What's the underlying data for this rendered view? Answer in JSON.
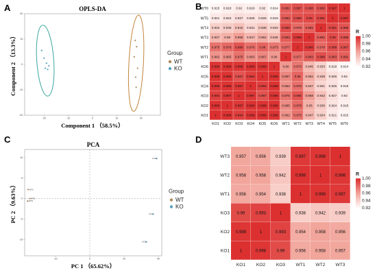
{
  "chart_data": [
    {
      "panel": "A",
      "type": "scatter",
      "title": "OPLS-DA",
      "xlabel": "Component 1 （58.5%）",
      "ylabel": "Component 2 （13.3%）",
      "legend_title": "Group",
      "legend_placement": "right",
      "xlim": [
        -28,
        28
      ],
      "ylim": [
        -20,
        20
      ],
      "x_ticks": [
        "-20",
        "-10",
        "0",
        "10",
        "20"
      ],
      "y_ticks": [
        "-20",
        "-10",
        "0",
        "10",
        "20"
      ],
      "series": [
        {
          "name": "WT",
          "color": "#a9885a",
          "x": [
            17.6,
            18.2,
            17.2,
            18.6,
            17.8,
            18.0
          ],
          "y": [
            9.5,
            7.0,
            3.0,
            -1.5,
            -5.0,
            -9.0
          ]
        },
        {
          "name": "KO",
          "color": "#56a0c0",
          "x": [
            -21.0,
            -20.0,
            -19.0,
            -18.0,
            -19.5,
            -18.5
          ],
          "y": [
            5.5,
            2.5,
            0.5,
            -0.5,
            -1.5,
            -2.0
          ]
        }
      ]
    },
    {
      "panel": "B",
      "type": "heatmap",
      "row_labels": [
        "WT6",
        "WT5",
        "WT4",
        "WT3",
        "WT2",
        "WT1",
        "KO6",
        "KO5",
        "KO4",
        "KO3",
        "KO2",
        "KO1"
      ],
      "col_labels": [
        "KO1",
        "KO2",
        "KO3",
        "KO4",
        "KO5",
        "KO6",
        "WT1",
        "WT2",
        "WT3",
        "WT4",
        "WT5",
        "WT6"
      ],
      "values": [
        [
          0.915,
          0.918,
          0.92,
          0.918,
          0.92,
          0.914,
          0.982,
          0.987,
          0.986,
          0.986,
          0.997,
          1
        ],
        [
          0.921,
          0.924,
          0.927,
          0.925,
          0.926,
          0.919,
          0.983,
          0.988,
          0.99,
          0.991,
          1,
          0.997
        ],
        [
          0.934,
          0.936,
          0.942,
          0.931,
          0.938,
          0.933,
          0.988,
          0.978,
          0.982,
          1,
          0.991,
          0.986
        ],
        [
          0.947,
          0.95,
          0.958,
          0.947,
          0.952,
          0.945,
          0.983,
          0.996,
          1,
          0.982,
          0.99,
          0.986
        ],
        [
          0.975,
          0.978,
          0.986,
          0.976,
          0.98,
          0.973,
          0.977,
          1,
          0.996,
          0.978,
          0.988,
          0.987
        ],
        [
          0.962,
          0.965,
          0.975,
          0.963,
          0.967,
          0.96,
          1,
          0.977,
          0.983,
          0.988,
          0.983,
          0.982
        ],
        [
          0.998,
          0.999,
          0.998,
          0.999,
          0.999,
          1,
          0.96,
          0.973,
          0.945,
          0.933,
          0.919,
          0.914
        ],
        [
          0.999,
          0.999,
          0.987,
          0.994,
          1,
          0.999,
          0.967,
          0.98,
          0.952,
          0.938,
          0.926,
          0.92
        ],
        [
          0.998,
          0.999,
          0.997,
          1,
          0.994,
          0.999,
          0.963,
          0.976,
          0.947,
          0.931,
          0.925,
          0.918
        ],
        [
          0.994,
          0.997,
          1,
          0.997,
          0.987,
          0.998,
          0.975,
          0.986,
          0.958,
          0.942,
          0.927,
          0.92
        ],
        [
          0.999,
          1,
          0.997,
          0.999,
          0.999,
          0.999,
          0.965,
          0.978,
          0.95,
          0.936,
          0.924,
          0.918
        ],
        [
          1,
          0.999,
          0.994,
          0.998,
          0.999,
          0.998,
          0.962,
          0.975,
          0.947,
          0.934,
          0.921,
          0.915
        ]
      ],
      "colorbar_title": "R",
      "colorbar_ticks": [
        "1.00",
        "0.98",
        "0.96",
        "0.94",
        "0.92"
      ],
      "value_range": [
        0.91,
        1.0
      ]
    },
    {
      "panel": "C",
      "type": "scatter",
      "title": "PCA",
      "xlabel": "PC 1 （65.62%）",
      "ylabel": "PC 2 （9.63%）",
      "legend_title": "Group",
      "legend_placement": "right",
      "xlim": [
        -38,
        42
      ],
      "ylim": [
        -14,
        12
      ],
      "x_ticks": [
        "-20",
        "0",
        "20",
        "40"
      ],
      "y_ticks": [
        "10",
        "5",
        "0",
        "-5",
        "-10"
      ],
      "series": [
        {
          "name": "WT",
          "color": "#a9885a",
          "points": [
            {
              "x": -36.0,
              "y": 2.2,
              "label": "WT1"
            },
            {
              "x": -35.0,
              "y": 0.0,
              "label": "WT2"
            },
            {
              "x": -36.3,
              "y": -0.6,
              "label": "WT3"
            }
          ]
        },
        {
          "name": "KO",
          "color": "#56a0c0",
          "points": [
            {
              "x": 39.0,
              "y": 9.8,
              "label": "KO3"
            },
            {
              "x": 37.0,
              "y": -3.8,
              "label": "KO1"
            },
            {
              "x": 33.0,
              "y": -10.6,
              "label": "KO2"
            }
          ]
        }
      ]
    },
    {
      "panel": "D",
      "type": "heatmap",
      "row_labels": [
        "WT3",
        "WT2",
        "WT1",
        "KO3",
        "KO2",
        "KO1"
      ],
      "col_labels": [
        "KO1",
        "KO2",
        "KO3",
        "WT1",
        "WT2",
        "WT3"
      ],
      "values": [
        [
          0.957,
          0.956,
          0.939,
          0.997,
          0.998,
          1
        ],
        [
          0.958,
          0.958,
          0.942,
          0.999,
          1,
          0.998
        ],
        [
          0.956,
          0.954,
          0.938,
          1,
          0.999,
          0.997
        ],
        [
          0.99,
          0.993,
          1,
          0.938,
          0.942,
          0.939
        ],
        [
          0.998,
          1,
          0.993,
          0.954,
          0.958,
          0.956
        ],
        [
          1,
          0.998,
          0.99,
          0.956,
          0.958,
          0.957
        ]
      ],
      "colorbar_title": "R",
      "colorbar_ticks": [
        "1.00",
        "0.98",
        "0.96",
        "0.94",
        "0.92"
      ],
      "value_range": [
        0.915,
        1.0
      ]
    }
  ],
  "panel_labels": [
    "A",
    "B",
    "C",
    "D"
  ],
  "colors": {
    "high": "#dc3030",
    "mid": "#f2a69c",
    "low": "#ffffff",
    "wt_ellipse": "#c4843b",
    "ko_ellipse": "#3aa79c"
  }
}
